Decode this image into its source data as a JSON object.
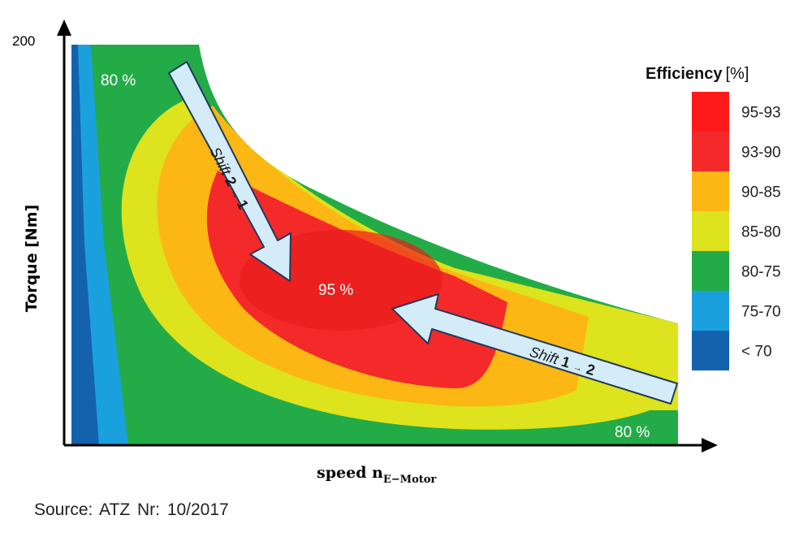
{
  "chart_data": {
    "type": "heatmap",
    "title": "",
    "xlabel_main": "speed n",
    "xlabel_sub": "E−Motor",
    "ylabel": "Torque [Nm]",
    "y_ticks": [
      "200"
    ],
    "legend": {
      "title": "Efficiency",
      "unit": "[%]",
      "entries": [
        {
          "label": "95-93",
          "color": "#ff1a1a"
        },
        {
          "label": "93-90",
          "color": "#f42a2a"
        },
        {
          "label": "90-85",
          "color": "#fdb714"
        },
        {
          "label": "85-80",
          "color": "#dde31c"
        },
        {
          "label": "80-75",
          "color": "#23ab48"
        },
        {
          "label": "75-70",
          "color": "#1ba0de"
        },
        {
          "label": "< 70",
          "color": "#1461ad"
        }
      ]
    },
    "region_labels": {
      "top_left": "80 %",
      "center": "95 %",
      "bottom_right": "80 %"
    },
    "annotations": [
      {
        "label_prefix": "Shift",
        "from": "2",
        "to": "1"
      },
      {
        "label_prefix": "Shift",
        "from": "1",
        "to": "2"
      }
    ]
  },
  "source": "Source:  ATZ  Nr: 10/2017"
}
